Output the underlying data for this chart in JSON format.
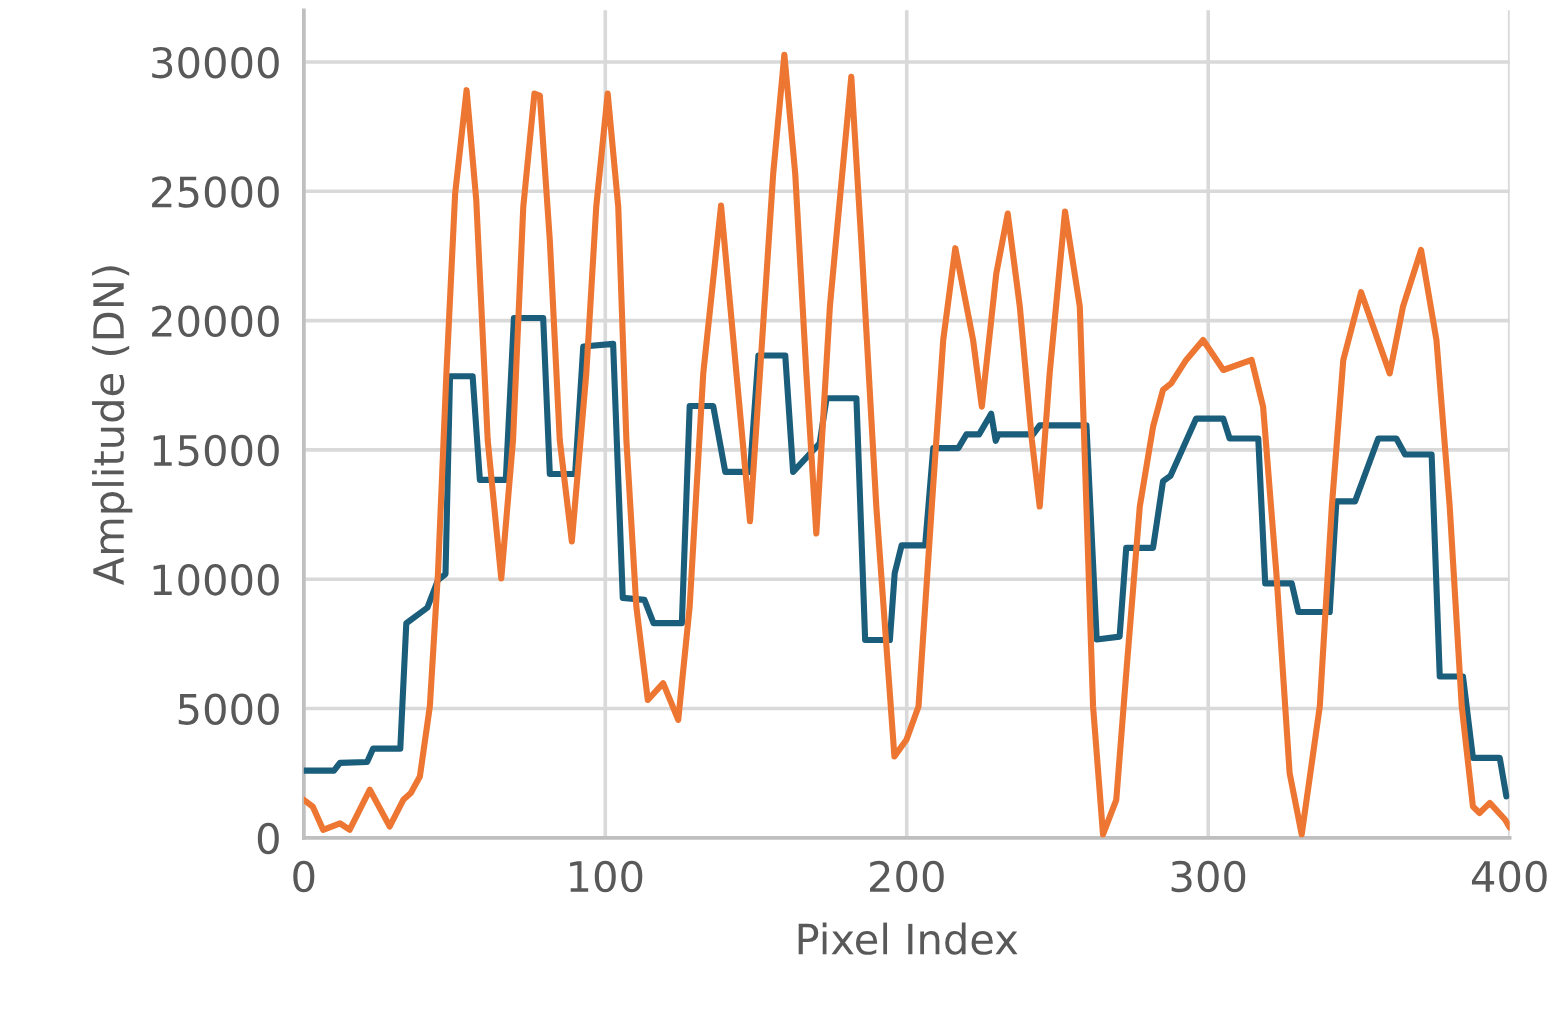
{
  "chart_data": {
    "type": "line",
    "xlabel": "Pixel Index",
    "ylabel": "Amplitude (DN)",
    "xlim": [
      0,
      400
    ],
    "xticks": [
      0,
      100,
      200,
      300,
      400
    ],
    "ylim": [
      0,
      32000
    ],
    "yticks": [
      0,
      5000,
      10000,
      15000,
      20000,
      25000,
      30000
    ],
    "grid": true,
    "marker": "none",
    "line_style": "solid",
    "series": [
      {
        "color": "#1b5e7b",
        "x": [
          0,
          10,
          12,
          21,
          23,
          32,
          34,
          41,
          44.5,
          47,
          48.5,
          56,
          58.4,
          67,
          69.7,
          79.4,
          81.6,
          90,
          92.7,
          102.6,
          105.8,
          113,
          116,
          125.4,
          128,
          135.8,
          139.8,
          148,
          150.8,
          159.7,
          162.3,
          171.1,
          173.4,
          183.3,
          186.2,
          194.4,
          196,
          198.3,
          206.1,
          208.8,
          217.1,
          219.8,
          224,
          228,
          229.5,
          230.4,
          241.9,
          244.1,
          259.6,
          263,
          270.6,
          272.8,
          281.7,
          285,
          287.5,
          296,
          305,
          307.1,
          316.6,
          318.9,
          327.7,
          329.9,
          340.3,
          342.5,
          348.7,
          356.4,
          362.4,
          365.3,
          374.1,
          376.8,
          384.5,
          387.8,
          396.7,
          398.9
        ],
        "values": [
          2600,
          2600,
          2900,
          2930,
          3450,
          3450,
          8300,
          8900,
          9970,
          10200,
          17850,
          17850,
          13840,
          13840,
          20100,
          20100,
          14070,
          14070,
          19000,
          19100,
          9280,
          9200,
          8300,
          8300,
          16700,
          16700,
          14150,
          14150,
          18650,
          18650,
          14150,
          15250,
          17000,
          17000,
          7650,
          7650,
          10230,
          11310,
          11310,
          15070,
          15070,
          15600,
          15600,
          16400,
          15350,
          15600,
          15600,
          15950,
          15950,
          7670,
          7780,
          11210,
          11210,
          13790,
          14000,
          16210,
          16210,
          15440,
          15440,
          9840,
          9840,
          8730,
          8730,
          13010,
          13010,
          15440,
          15440,
          14820,
          14820,
          6240,
          6240,
          3090,
          3090,
          1600
        ]
      },
      {
        "color": "#ee7633",
        "x": [
          0,
          3,
          6.4,
          12,
          15.2,
          21.9,
          28.5,
          33,
          35.5,
          38.5,
          41.8,
          44.5,
          47.3,
          50.2,
          54,
          57.2,
          61,
          65.5,
          69.4,
          72.8,
          76.5,
          78.3,
          81.6,
          84.9,
          88.9,
          93.7,
          97,
          100.8,
          104.3,
          107,
          110.3,
          114.1,
          119.2,
          124.2,
          128,
          132.5,
          138.4,
          143.5,
          148,
          151.3,
          155.7,
          159.4,
          163,
          166.7,
          170,
          174.5,
          181.6,
          184.9,
          189.9,
          195.9,
          199.9,
          203.9,
          208.3,
          212.1,
          216.1,
          222,
          224.9,
          229.7,
          233.5,
          237.5,
          241.5,
          244.1,
          247.4,
          252.5,
          257.4,
          259.6,
          261.8,
          265.1,
          269.5,
          272.8,
          277.3,
          281.7,
          285,
          287.7,
          292.7,
          298.3,
          305,
          314.4,
          318.2,
          322.6,
          327,
          331,
          337,
          341,
          344.8,
          350.7,
          360.2,
          364.6,
          370.6,
          375.7,
          380.1,
          384.1,
          387.8,
          390,
          393.4,
          398.5,
          400
        ],
        "values": [
          1470,
          1200,
          310,
          560,
          310,
          1860,
          440,
          1470,
          1730,
          2370,
          5080,
          10230,
          17960,
          24910,
          28910,
          24660,
          15380,
          10030,
          15380,
          24400,
          28780,
          28700,
          23110,
          15380,
          11460,
          17960,
          24400,
          28780,
          24400,
          15380,
          8940,
          5330,
          5980,
          4560,
          8960,
          17960,
          24450,
          17960,
          12240,
          17960,
          25690,
          30280,
          25690,
          17960,
          11770,
          20540,
          29430,
          23110,
          12810,
          3150,
          3790,
          5080,
          12810,
          19250,
          22800,
          19250,
          16670,
          21820,
          24140,
          20540,
          15380,
          12810,
          17960,
          24220,
          20540,
          12810,
          5080,
          130,
          1470,
          6360,
          12810,
          15900,
          17320,
          17570,
          18480,
          19250,
          18090,
          18480,
          16670,
          10230,
          2500,
          130,
          5080,
          12810,
          18480,
          21100,
          17960,
          20540,
          22730,
          19250,
          12810,
          5080,
          1210,
          960,
          1350,
          700,
          400
        ]
      }
    ]
  }
}
